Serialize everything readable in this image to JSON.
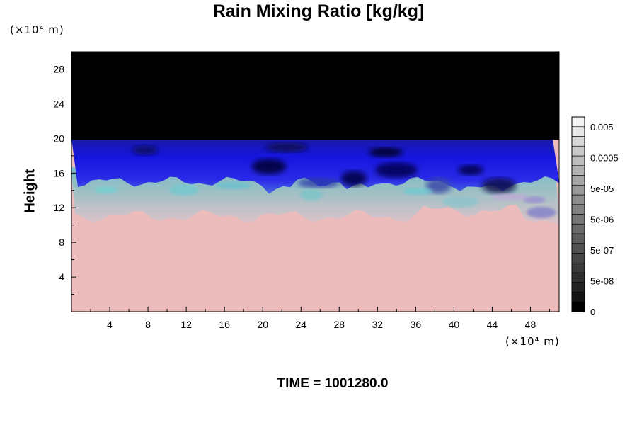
{
  "chart_data": {
    "type": "heatmap",
    "title": "Rain Mixing Ratio [kg/kg]",
    "xlabel": "",
    "ylabel": "Height",
    "x_unit": "(×10⁴ m)",
    "y_unit": "(×10⁴ m)",
    "x_ticks": [
      4,
      8,
      12,
      16,
      20,
      24,
      28,
      32,
      36,
      40,
      44,
      48
    ],
    "y_ticks": [
      4,
      8,
      12,
      16,
      20,
      24,
      28
    ],
    "xlim": [
      0,
      51
    ],
    "ylim": [
      0,
      30
    ],
    "colorbar": {
      "labels": [
        "0.005",
        "0.0005",
        "5e-05",
        "5e-06",
        "5e-07",
        "5e-08",
        "0"
      ],
      "colors": [
        "#000000",
        "#141414",
        "#222222",
        "#2e2e2e",
        "#3a3a3a",
        "#464646",
        "#525252",
        "#5e5e5e",
        "#6a6a6a",
        "#767676",
        "#828282",
        "#8e8e8e",
        "#9a9a9a",
        "#a6a6a6",
        "#b2b2b2",
        "#bebebe",
        "#cacaca",
        "#d8d8d8",
        "#e8e8e8",
        "#f4f4f4"
      ]
    },
    "layers": [
      {
        "name": "top",
        "from_height": 20,
        "to_height": 30,
        "color": "#000000"
      },
      {
        "name": "blue",
        "from_height": 15,
        "to_height": 20,
        "color": "#1a1ad8"
      },
      {
        "name": "mixed",
        "from_height": 11,
        "to_height": 16,
        "color": "#9ab7c2"
      },
      {
        "name": "bottom",
        "from_height": 0,
        "to_height": 11,
        "color": "#ecbcbc"
      }
    ],
    "grid": false
  },
  "footer": {
    "time_text": "TIME = 1001280.0"
  }
}
